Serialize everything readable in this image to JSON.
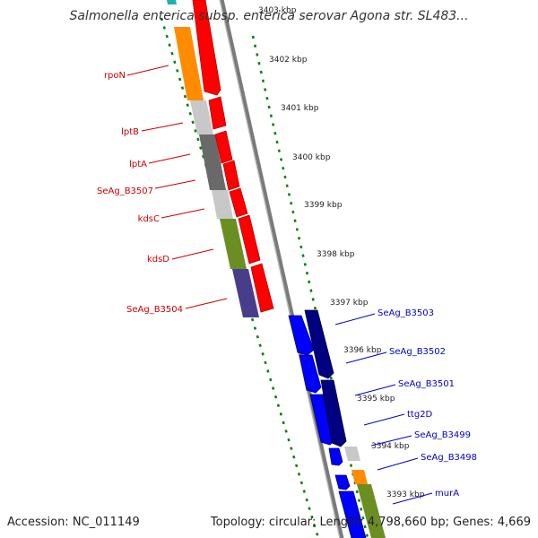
{
  "map": {
    "title": "Salmonella enterica subsp. enterica serovar Agona str. SL483...",
    "accession": "Accession: NC_011149",
    "summary": "Topology: circular; Length: 4,798,660 bp; Genes: 4,669",
    "kbp_ticks": [
      "3403 kbp",
      "3402 kbp",
      "3401 kbp",
      "3400 kbp",
      "3399 kbp",
      "3398 kbp",
      "3397 kbp",
      "3396 kbp",
      "3395 kbp",
      "3394 kbp",
      "3393 kbp"
    ],
    "genes_reverse": [
      "rpoN",
      "lptB",
      "lptA",
      "SeAg_B3507",
      "kdsC",
      "kdsD",
      "SeAg_B3504"
    ],
    "genes_forward": [
      "SeAg_B3503",
      "SeAg_B3502",
      "SeAg_B3501",
      "ttg2D",
      "SeAg_B3499",
      "SeAg_B3498",
      "murA"
    ],
    "colors": {
      "reverse_label": "#cc0000",
      "forward_label": "#0000cc",
      "reverse_arrow": "#ff0000",
      "forward_arrow": "#0000ff",
      "forward_dark": "#000080",
      "orange": "#ff8c00",
      "light_gray": "#c8c8c8",
      "dark_gray": "#696969",
      "olive": "#6b8e23",
      "slate": "#483d8b",
      "backbone": "#808080",
      "dots": "#008000"
    }
  }
}
